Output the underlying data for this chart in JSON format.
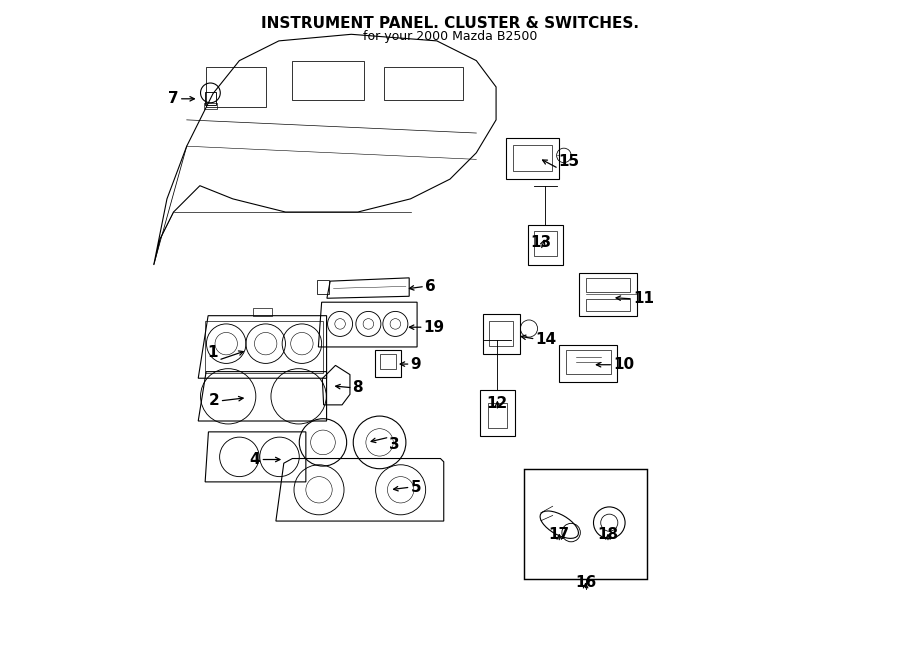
{
  "title": "INSTRUMENT PANEL. CLUSTER & SWITCHES.",
  "subtitle": "for your 2000 Mazda B2500",
  "bg_color": "#ffffff",
  "line_color": "#000000",
  "label_fontsize": 11,
  "title_fontsize": 11
}
